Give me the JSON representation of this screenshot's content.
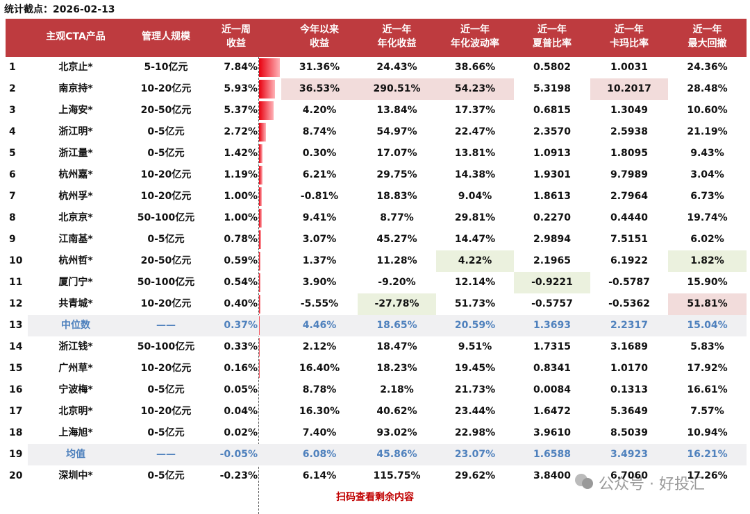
{
  "header": {
    "stat_date": "统计截点：2026-02-13"
  },
  "table": {
    "columns": [
      [
        "主观CTA产品"
      ],
      [
        "管理人规模"
      ],
      [
        "近一周",
        "收益"
      ],
      [
        "今年以来",
        "收益"
      ],
      [
        "近一年",
        "年化收益"
      ],
      [
        "近一年",
        "年化波动率"
      ],
      [
        "近一年",
        "夏普比率"
      ],
      [
        "近一年",
        "卡玛比率"
      ],
      [
        "近一年",
        "最大回撤"
      ]
    ],
    "rows": [
      [
        "1",
        "北京止*",
        "5-10亿元",
        "7.84%",
        "31.36%",
        "24.43%",
        "38.66%",
        "0.5802",
        "1.0031",
        "24.36%"
      ],
      [
        "2",
        "南京持*",
        "10-20亿元",
        "5.93%",
        "36.53%",
        "290.51%",
        "54.23%",
        "5.3198",
        "10.2017",
        "28.48%"
      ],
      [
        "3",
        "上海安*",
        "20-50亿元",
        "5.37%",
        "4.20%",
        "13.84%",
        "17.37%",
        "0.6815",
        "1.3049",
        "10.60%"
      ],
      [
        "4",
        "浙江明*",
        "0-5亿元",
        "2.72%",
        "8.74%",
        "54.97%",
        "22.47%",
        "2.3570",
        "2.5938",
        "21.19%"
      ],
      [
        "5",
        "浙江量*",
        "0-5亿元",
        "1.42%",
        "0.30%",
        "17.07%",
        "13.81%",
        "1.0913",
        "1.8095",
        "9.43%"
      ],
      [
        "6",
        "杭州嘉*",
        "10-20亿元",
        "1.19%",
        "6.21%",
        "29.75%",
        "14.38%",
        "1.9301",
        "9.7989",
        "3.04%"
      ],
      [
        "7",
        "杭州孚*",
        "10-20亿元",
        "1.00%",
        "-0.81%",
        "18.83%",
        "9.04%",
        "1.8613",
        "2.7964",
        "6.73%"
      ],
      [
        "8",
        "北京京*",
        "50-100亿元",
        "1.00%",
        "9.41%",
        "8.77%",
        "29.81%",
        "0.2270",
        "0.4440",
        "19.74%"
      ],
      [
        "9",
        "江南基*",
        "0-5亿元",
        "0.78%",
        "3.07%",
        "45.27%",
        "14.47%",
        "2.9894",
        "7.5151",
        "6.02%"
      ],
      [
        "10",
        "杭州哲*",
        "20-50亿元",
        "0.59%",
        "1.37%",
        "11.28%",
        "4.22%",
        "2.1965",
        "6.1922",
        "1.82%"
      ],
      [
        "11",
        "厦门宁*",
        "50-100亿元",
        "0.54%",
        "3.90%",
        "-9.20%",
        "12.14%",
        "-0.9221",
        "-0.5787",
        "15.90%"
      ],
      [
        "12",
        "共青城*",
        "10-20亿元",
        "0.40%",
        "-5.55%",
        "-27.78%",
        "51.73%",
        "-0.5757",
        "-0.5362",
        "51.81%"
      ],
      [
        "13",
        "中位数",
        "——",
        "0.37%",
        "4.46%",
        "18.65%",
        "20.59%",
        "1.3693",
        "2.2317",
        "15.04%"
      ],
      [
        "14",
        "浙江钱*",
        "50-100亿元",
        "0.33%",
        "2.12%",
        "18.47%",
        "9.51%",
        "1.7315",
        "3.1689",
        "5.83%"
      ],
      [
        "15",
        "广州草*",
        "10-20亿元",
        "0.16%",
        "16.40%",
        "18.23%",
        "19.45%",
        "0.8341",
        "1.0170",
        "17.92%"
      ],
      [
        "16",
        "宁波梅*",
        "0-5亿元",
        "0.05%",
        "8.78%",
        "2.18%",
        "21.73%",
        "0.0084",
        "0.1313",
        "16.61%"
      ],
      [
        "17",
        "北京明*",
        "10-20亿元",
        "0.04%",
        "16.30%",
        "40.62%",
        "23.44%",
        "1.6472",
        "5.3649",
        "7.57%"
      ],
      [
        "18",
        "上海旭*",
        "0-5亿元",
        "0.02%",
        "7.40%",
        "93.02%",
        "22.98%",
        "3.9610",
        "8.5039",
        "10.94%"
      ],
      [
        "19",
        "均值",
        "——",
        "-0.05%",
        "6.08%",
        "45.86%",
        "23.07%",
        "1.6588",
        "3.4923",
        "16.21%"
      ],
      [
        "20",
        "深圳中*",
        "0-5亿元",
        "-0.23%",
        "6.14%",
        "115.75%",
        "29.62%",
        "3.8400",
        "6.7060",
        "17.26%"
      ]
    ]
  },
  "footer": {
    "note": "扫码查看剩余内容",
    "watermark": "公众号 · 好投汇"
  }
}
